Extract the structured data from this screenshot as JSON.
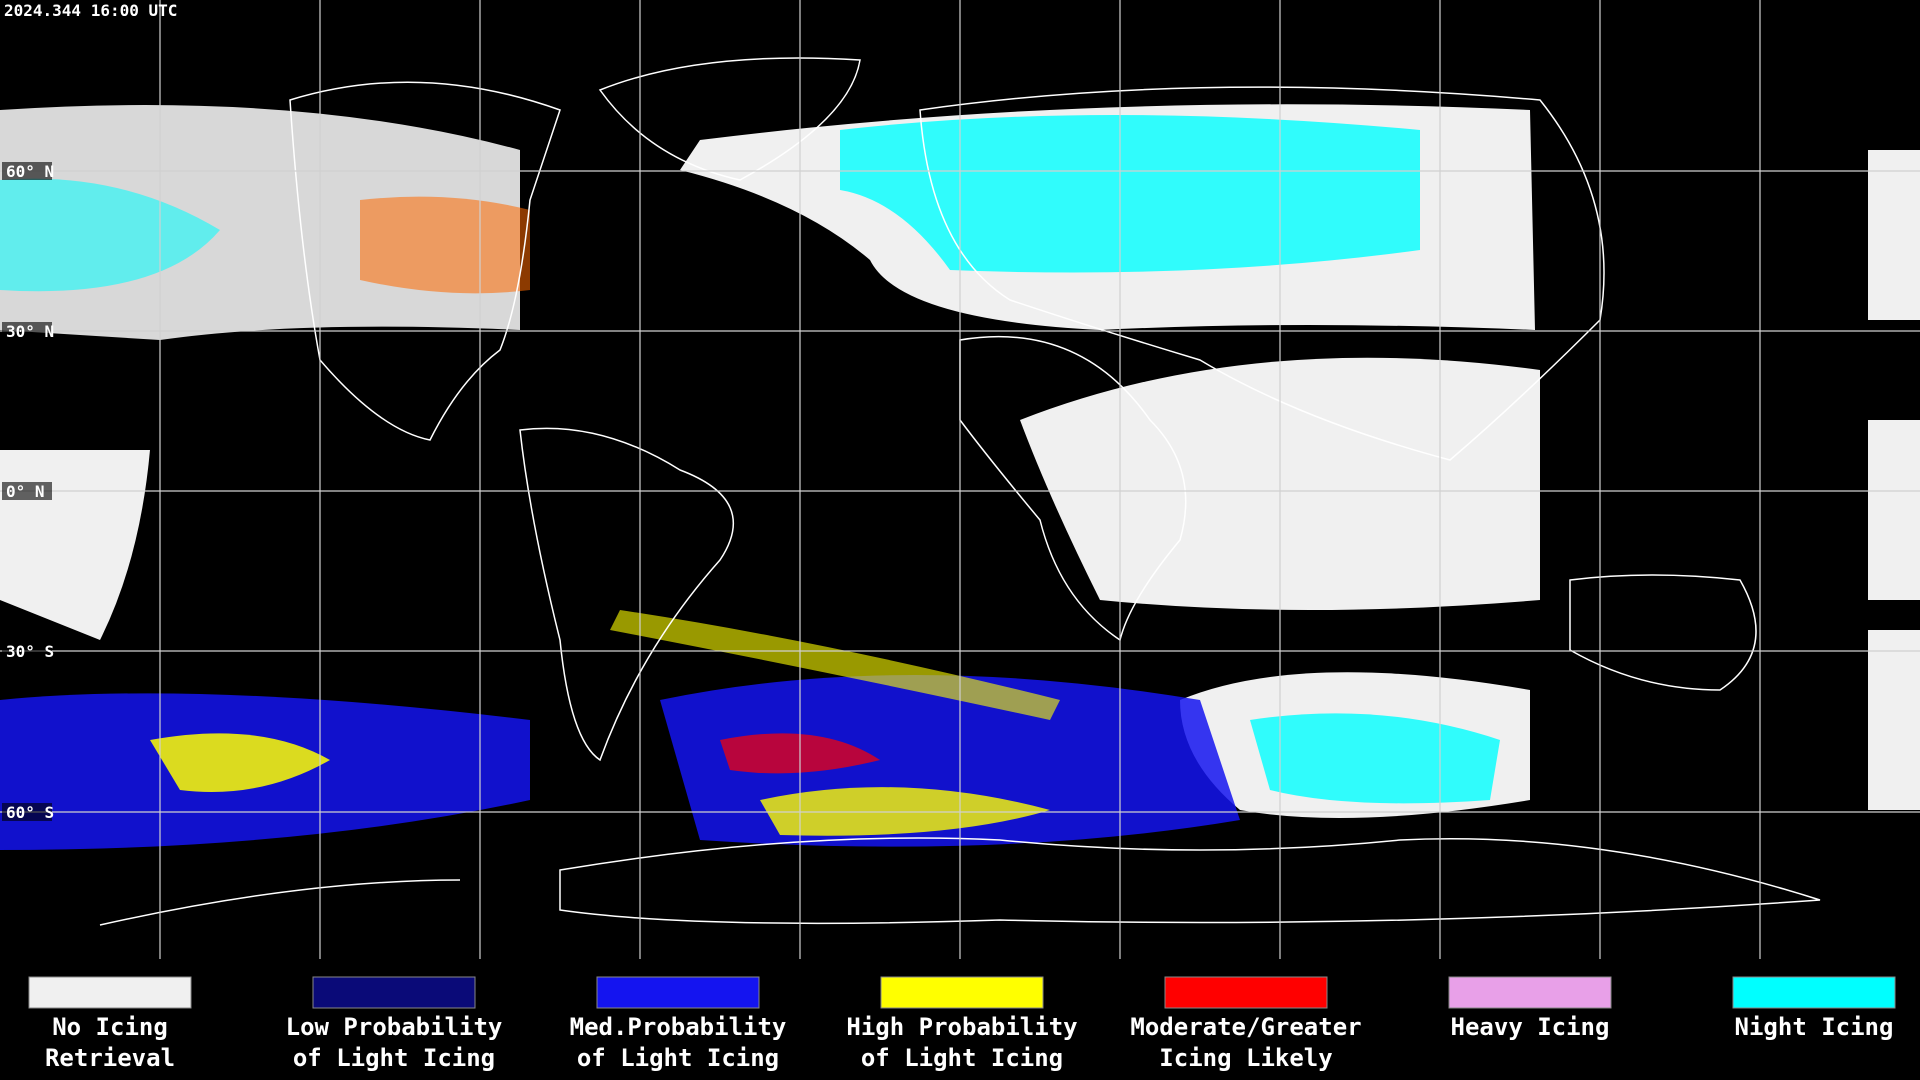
{
  "header": {
    "timestamp": "2024.344 16:00 UTC"
  },
  "map": {
    "latitude_labels": [
      "60° N",
      "30° N",
      "0° N",
      "30° S",
      "60° S"
    ]
  },
  "legend": {
    "items": [
      {
        "color": "#f0f0f0",
        "label": [
          "No Icing",
          "Retrieval"
        ]
      },
      {
        "color": "#0a0a78",
        "label": [
          "Low Probability",
          "of Light Icing"
        ]
      },
      {
        "color": "#1414f0",
        "label": [
          "Med.Probability",
          "of Light Icing"
        ]
      },
      {
        "color": "#ffff00",
        "label": [
          "High Probability",
          "of Light Icing"
        ]
      },
      {
        "color": "#ff0000",
        "label": [
          "Moderate/Greater",
          "Icing Likely"
        ]
      },
      {
        "color": "#e8a0e8",
        "label": [
          "Heavy Icing"
        ]
      },
      {
        "color": "#00ffff",
        "label": [
          "Night Icing"
        ]
      }
    ]
  }
}
